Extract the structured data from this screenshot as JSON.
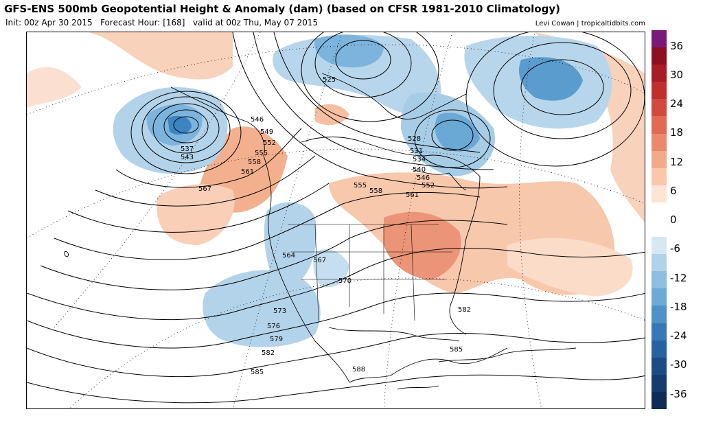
{
  "header": {
    "title": "GFS-ENS 500mb Geopotential Height & Anomaly (dam) (based on CFSR 1981-2010 Climatology)",
    "init": "Init: 00z Apr 30 2015",
    "forecast_hour": "Forecast Hour: [168]",
    "valid": "valid at 00z Thu, May 07 2015",
    "credit": "Levi Cowan | tropicaltidbits.com"
  },
  "colorbar": {
    "labels": [
      "36",
      "30",
      "24",
      "18",
      "12",
      "6",
      "0",
      "-6",
      "-12",
      "-18",
      "-24",
      "-30",
      "-36"
    ],
    "colors": [
      "#7a1a78",
      "#8e0f22",
      "#a81c26",
      "#c02e2e",
      "#d24a3e",
      "#e06a52",
      "#ea8a6a",
      "#f2aa8a",
      "#f8c8ac",
      "#fde4d4",
      "#ffffff",
      "#ffffff",
      "#d8e8f2",
      "#b2d2e8",
      "#8ebfe0",
      "#6eaad6",
      "#4f92c8",
      "#3779b8",
      "#27619f",
      "#1c4c86",
      "#163b6c",
      "#0f2c54"
    ]
  },
  "contour_labels": [
    "525",
    "528",
    "531",
    "534",
    "537",
    "540",
    "543",
    "546",
    "549",
    "552",
    "555",
    "558",
    "561",
    "564",
    "567",
    "570",
    "573",
    "576",
    "579",
    "582",
    "585",
    "588"
  ],
  "map_labels": [
    {
      "text": "525"
    },
    {
      "text": "528"
    },
    {
      "text": "531"
    },
    {
      "text": "534"
    },
    {
      "text": "540"
    },
    {
      "text": "546"
    },
    {
      "text": "552"
    },
    {
      "text": "561"
    },
    {
      "text": "555"
    },
    {
      "text": "558"
    },
    {
      "text": "546"
    },
    {
      "text": "549"
    },
    {
      "text": "552"
    },
    {
      "text": "555"
    },
    {
      "text": "558"
    },
    {
      "text": "561"
    },
    {
      "text": "537"
    },
    {
      "text": "543"
    },
    {
      "text": "567"
    },
    {
      "text": "564"
    },
    {
      "text": "567"
    },
    {
      "text": "570"
    },
    {
      "text": "573"
    },
    {
      "text": "576"
    },
    {
      "text": "579"
    },
    {
      "text": "582"
    },
    {
      "text": "585"
    },
    {
      "text": "588"
    },
    {
      "text": "585"
    },
    {
      "text": "582"
    }
  ]
}
